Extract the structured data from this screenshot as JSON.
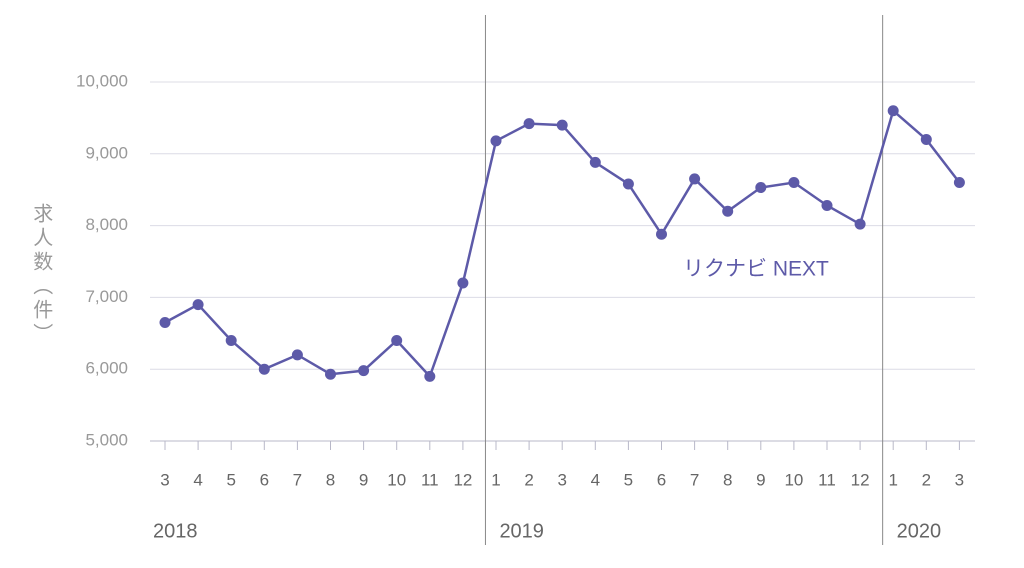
{
  "chart_data": {
    "type": "line",
    "y_label": "求人数（件）",
    "categories": [
      "3",
      "4",
      "5",
      "6",
      "7",
      "8",
      "9",
      "10",
      "11",
      "12",
      "1",
      "2",
      "3",
      "4",
      "5",
      "6",
      "7",
      "8",
      "9",
      "10",
      "11",
      "12",
      "1",
      "2",
      "3"
    ],
    "group_labels": [
      "2018",
      "2019",
      "2020"
    ],
    "series": [
      {
        "name": "リクナビ NEXT",
        "color": "#5d5aa8",
        "values": [
          6650,
          6900,
          6400,
          6000,
          6200,
          5930,
          5980,
          6400,
          5900,
          7200,
          9180,
          9420,
          9400,
          8880,
          8580,
          7880,
          8650,
          8200,
          8530,
          8600,
          8280,
          8020,
          9600,
          9200,
          8600
        ]
      }
    ],
    "ylim": [
      5000,
      10000
    ],
    "yticks": [
      {
        "value": 5000,
        "label": "5,000"
      },
      {
        "value": 6000,
        "label": "6,000"
      },
      {
        "value": 7000,
        "label": "7,000"
      },
      {
        "value": 8000,
        "label": "8,000"
      },
      {
        "value": 9000,
        "label": "9,000"
      },
      {
        "value": 10000,
        "label": "10,000"
      }
    ],
    "grid": true
  }
}
